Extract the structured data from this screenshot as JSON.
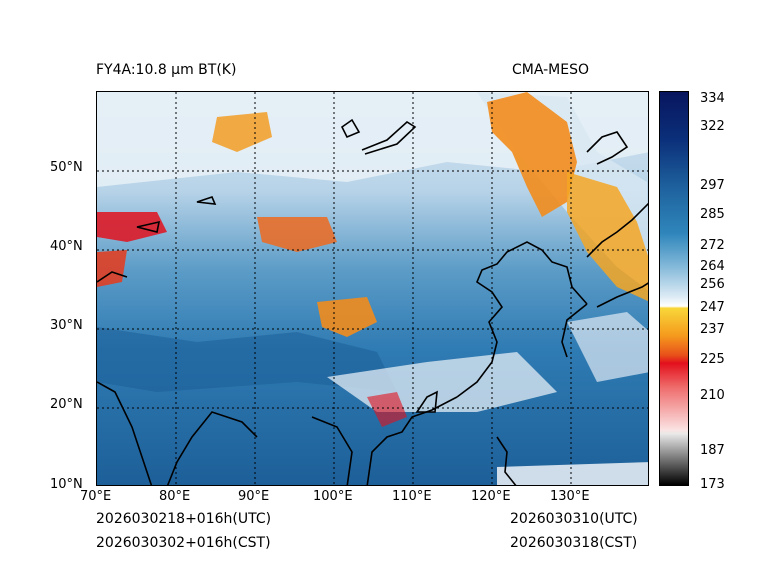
{
  "title_left": "FY4A:10.8 µm BT(K)",
  "title_right": "CMA-MESO",
  "footer": {
    "utc_left": "2026030218+016h(UTC)",
    "cst_left": "2026030302+016h(CST)",
    "utc_right": "2026030310(UTC)",
    "cst_right": "2026030318(CST)"
  },
  "lat_labels": [
    "50°N",
    "40°N",
    "30°N",
    "20°N",
    "10°N"
  ],
  "lon_labels": [
    "70°E",
    "80°E",
    "90°E",
    "100°E",
    "110°E",
    "120°E",
    "130°E"
  ],
  "colorbar": {
    "ticks": [
      "334",
      "322",
      "297",
      "285",
      "272",
      "264",
      "256",
      "247",
      "237",
      "225",
      "210",
      "187",
      "173"
    ],
    "range": [
      173,
      336
    ]
  },
  "colors": {
    "cold_cloud_orange": "#f28c1c",
    "cold_cloud_red": "#e2101c",
    "clear_ocean_blue": "#1e5f96",
    "land_blue": "#3f8fc0",
    "high_cloud_white": "#e8f1f8"
  }
}
